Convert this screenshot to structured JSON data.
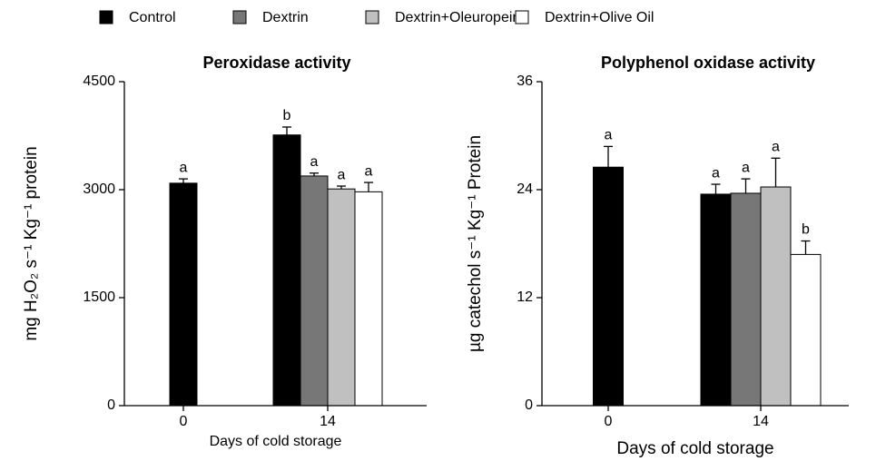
{
  "legend": [
    "Control",
    "Dextrin",
    "Dextrin+Oleuropein",
    "Dextrin+Olive Oil"
  ],
  "chart_data": [
    {
      "type": "bar",
      "title": "Peroxidase activity",
      "y_label": "mg H₂O₂ s⁻¹ Kg⁻¹ protein",
      "x_label": "Days of cold storage",
      "categories": [
        "0",
        "14"
      ],
      "ylim": [
        0,
        4500
      ],
      "yticks": [
        0,
        1500,
        3000,
        4500
      ],
      "series": [
        {
          "name": "Control",
          "color": "#000000",
          "values": [
            3090,
            3760
          ],
          "errors": [
            60,
            110
          ],
          "labels": [
            "a",
            "b"
          ]
        },
        {
          "name": "Dextrin",
          "color": "#777777",
          "values": [
            null,
            3190
          ],
          "errors": [
            null,
            40
          ],
          "labels": [
            null,
            "a"
          ]
        },
        {
          "name": "Dextrin+Oleuropein",
          "color": "#c0c0c0",
          "values": [
            null,
            3010
          ],
          "errors": [
            null,
            40
          ],
          "labels": [
            null,
            "a"
          ]
        },
        {
          "name": "Dextrin+Olive Oil",
          "color": "#ffffff",
          "values": [
            null,
            2970
          ],
          "errors": [
            null,
            130
          ],
          "labels": [
            null,
            "a"
          ]
        }
      ]
    },
    {
      "type": "bar",
      "title": "Polyphenol oxidase activity",
      "y_label": "µg catechol s⁻¹ Kg⁻¹ Protein",
      "x_label": "Days of cold storage",
      "categories": [
        "0",
        "14"
      ],
      "ylim": [
        0,
        36
      ],
      "yticks": [
        0,
        12,
        24,
        36
      ],
      "series": [
        {
          "name": "Control",
          "color": "#000000",
          "values": [
            26.5,
            23.5
          ],
          "errors": [
            2.3,
            1.1
          ],
          "labels": [
            "a",
            "a"
          ]
        },
        {
          "name": "Dextrin",
          "color": "#777777",
          "values": [
            null,
            23.6
          ],
          "errors": [
            null,
            1.6
          ],
          "labels": [
            null,
            "a"
          ]
        },
        {
          "name": "Dextrin+Oleuropein",
          "color": "#c0c0c0",
          "values": [
            null,
            24.3
          ],
          "errors": [
            null,
            3.2
          ],
          "labels": [
            null,
            "a"
          ]
        },
        {
          "name": "Dextrin+Olive Oil",
          "color": "#ffffff",
          "values": [
            null,
            16.8
          ],
          "errors": [
            null,
            1.5
          ],
          "labels": [
            null,
            "b"
          ]
        }
      ]
    }
  ]
}
